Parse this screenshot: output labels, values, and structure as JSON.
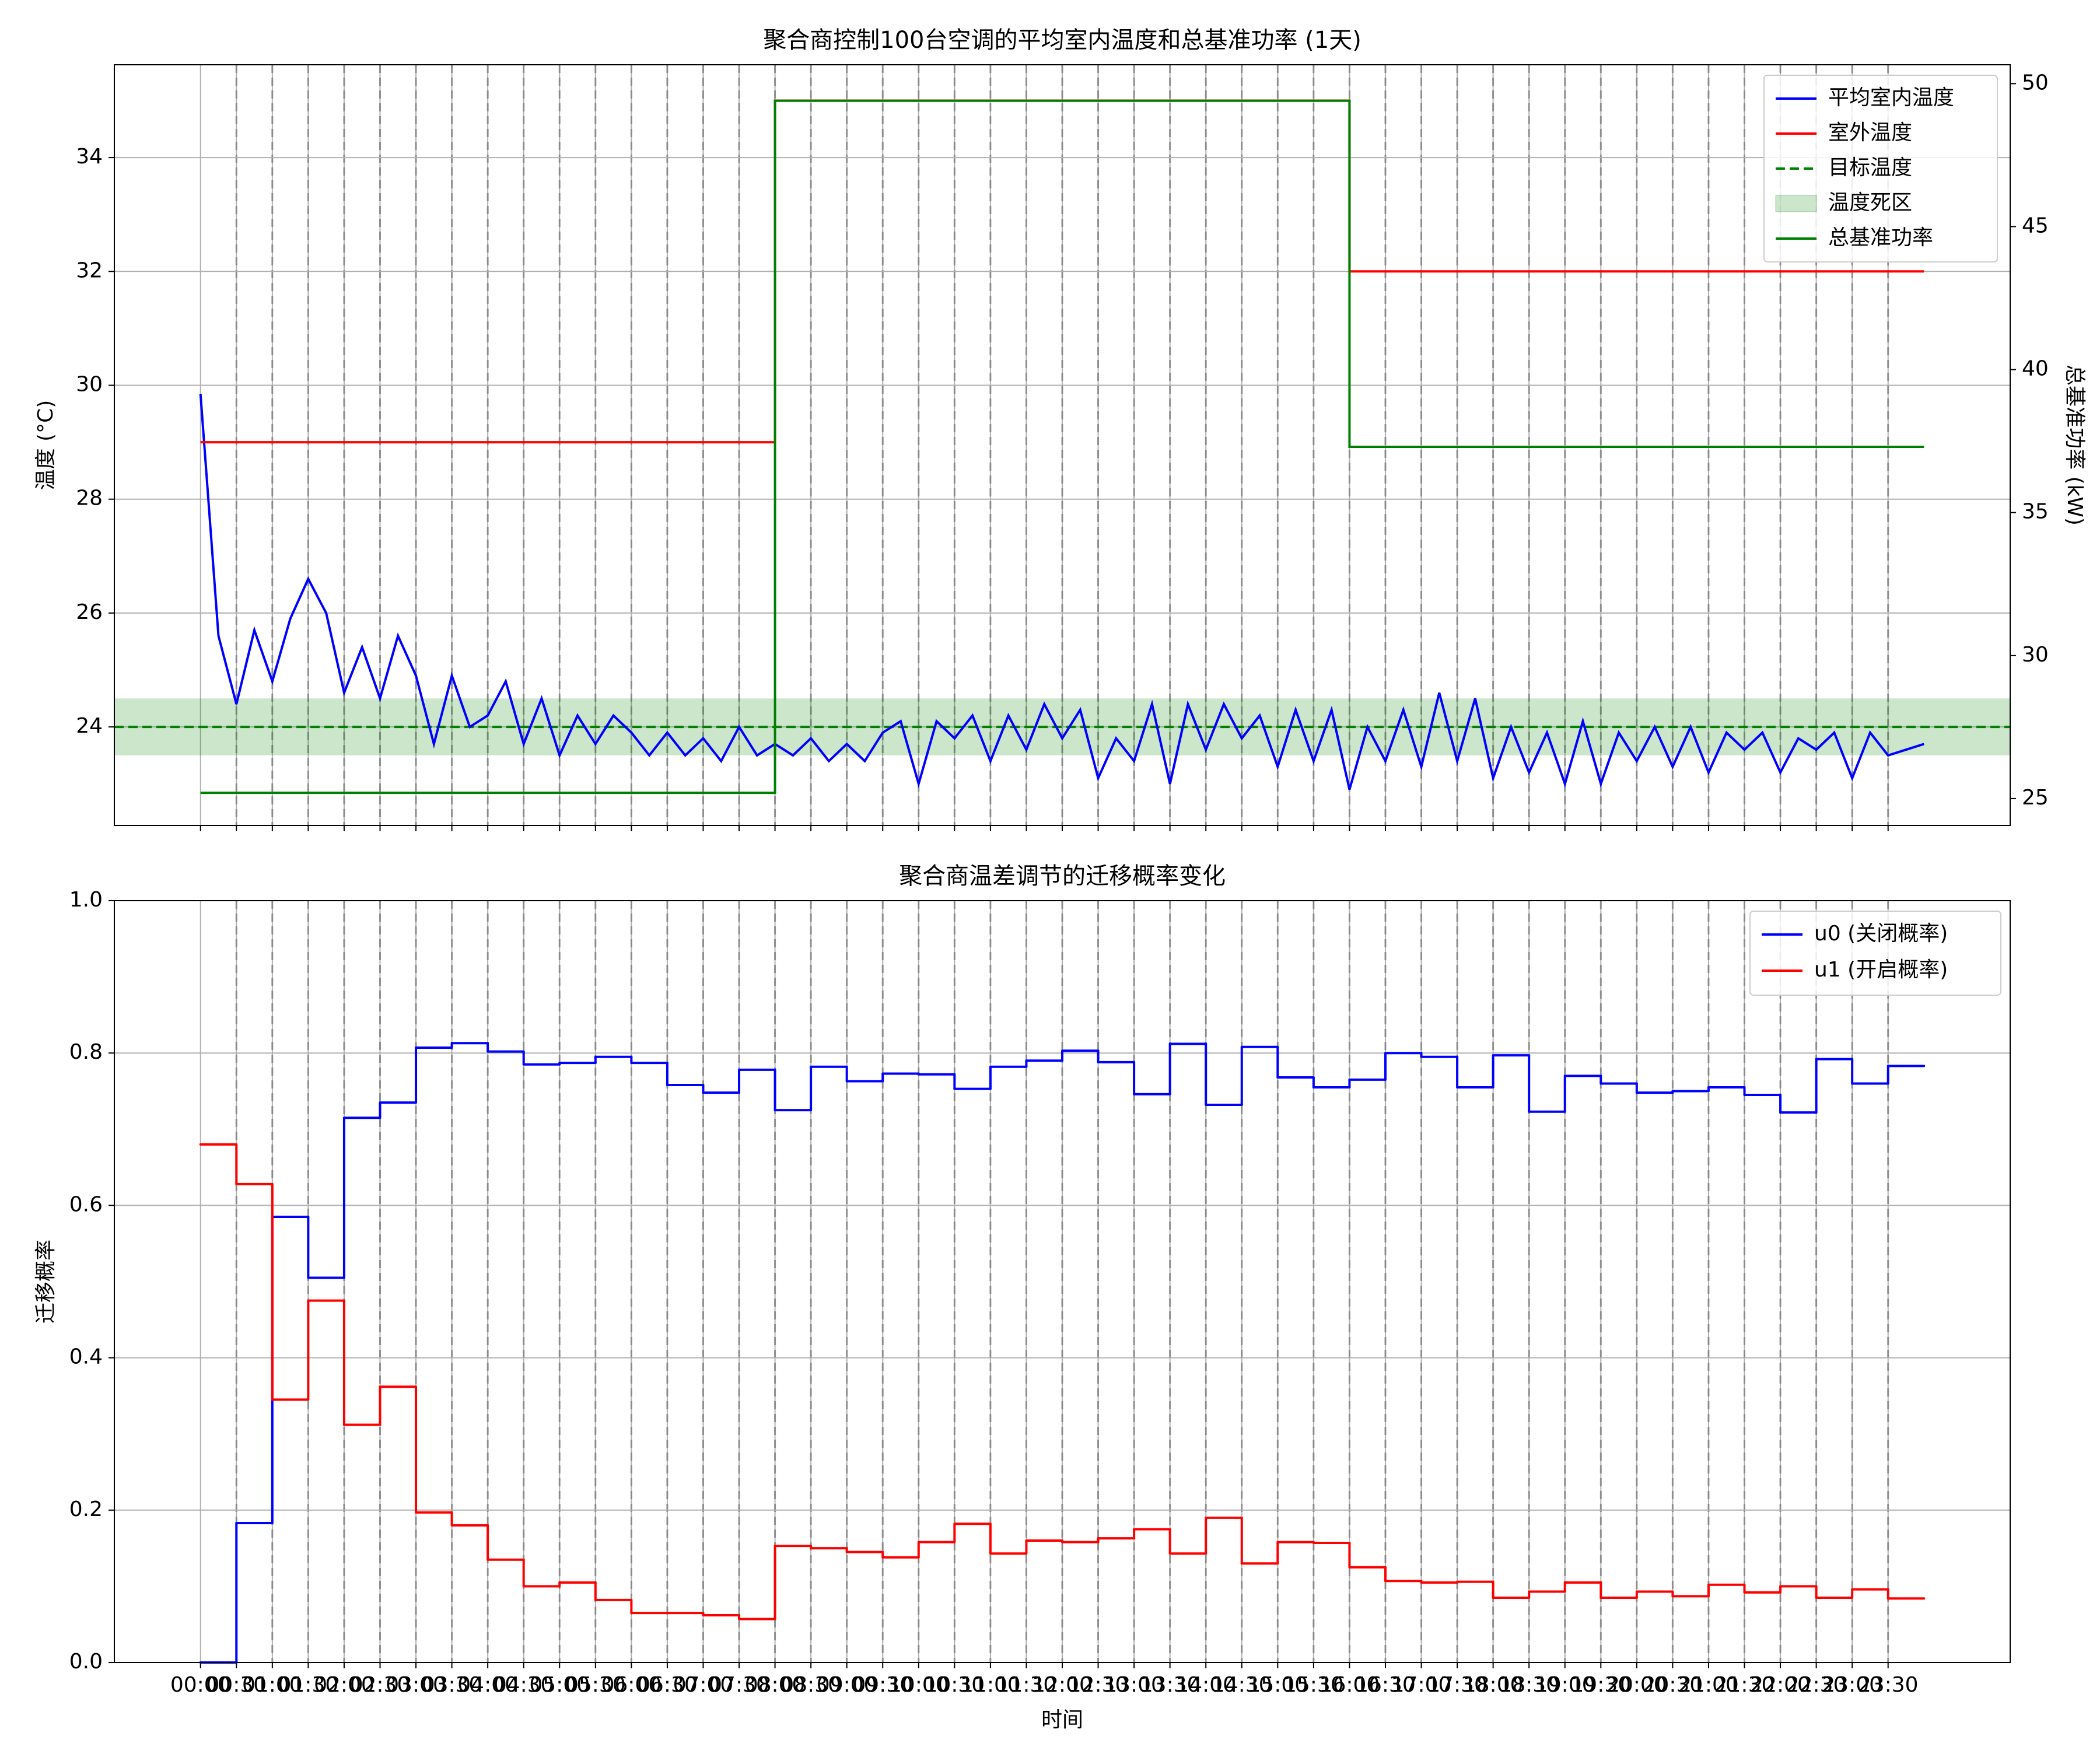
{
  "chart_data": [
    {
      "type": "line",
      "title": "聚合商控制100台空调的平均室内温度和总基准功率 (1天)",
      "ylabel": "温度 (°C)",
      "y2label": "总基准功率 (kW)",
      "xlim": [
        -1.2,
        25.2
      ],
      "ylim": [
        22.27,
        35.63
      ],
      "yticks": [
        24,
        26,
        28,
        30,
        32,
        34
      ],
      "y2lim": [
        24.06,
        50.66
      ],
      "y2ticks": [
        25,
        30,
        35,
        40,
        45,
        50
      ],
      "grid": true,
      "legend": "upper right",
      "series": [
        {
          "name": "平均室内温度",
          "color": "#0000ff",
          "x": [
            0,
            0.25,
            0.5,
            0.75,
            1,
            1.25,
            1.5,
            1.75,
            2,
            2.25,
            2.5,
            2.75,
            3,
            3.25,
            3.5,
            3.75,
            4,
            4.25,
            4.5,
            4.75,
            5,
            5.25,
            5.5,
            5.75,
            6,
            6.25,
            6.5,
            6.75,
            7,
            7.25,
            7.5,
            7.75,
            8,
            8.25,
            8.5,
            8.75,
            9,
            9.25,
            9.5,
            9.75,
            10,
            10.25,
            10.5,
            10.75,
            11,
            11.25,
            11.5,
            11.75,
            12,
            12.25,
            12.5,
            12.75,
            13,
            13.25,
            13.5,
            13.75,
            14,
            14.25,
            14.5,
            14.75,
            15,
            15.25,
            15.5,
            15.75,
            16,
            16.25,
            16.5,
            16.75,
            17,
            17.25,
            17.5,
            17.75,
            18,
            18.25,
            18.5,
            18.75,
            19,
            19.25,
            19.5,
            19.75,
            20,
            20.25,
            20.5,
            20.75,
            21,
            21.25,
            21.5,
            21.75,
            22,
            22.25,
            22.5,
            22.75,
            23,
            23.25,
            23.5,
            23.75,
            24
          ],
          "values": [
            29.85,
            25.6,
            24.4,
            25.7,
            24.8,
            25.9,
            26.6,
            26.0,
            24.6,
            25.4,
            24.5,
            25.6,
            24.9,
            23.7,
            24.9,
            24.0,
            24.2,
            24.8,
            23.7,
            24.5,
            23.5,
            24.2,
            23.7,
            24.2,
            23.9,
            23.5,
            23.9,
            23.5,
            23.8,
            23.4,
            24.0,
            23.5,
            23.7,
            23.5,
            23.8,
            23.4,
            23.7,
            23.4,
            23.9,
            24.1,
            23.0,
            24.1,
            23.8,
            24.2,
            23.4,
            24.2,
            23.6,
            24.4,
            23.8,
            24.3,
            23.1,
            23.8,
            23.4,
            24.4,
            23.0,
            24.4,
            23.6,
            24.4,
            23.8,
            24.2,
            23.3,
            24.3,
            23.4,
            24.3,
            22.9,
            24.0,
            23.4,
            24.3,
            23.3,
            24.6,
            23.4,
            24.5,
            23.1,
            24.0,
            23.2,
            23.9,
            23.0,
            24.1,
            23.0,
            23.9,
            23.4,
            24.0,
            23.3,
            24.0,
            23.2,
            23.9,
            23.6,
            23.9,
            23.2,
            23.8,
            23.6,
            23.9,
            23.1,
            23.9,
            23.5,
            23.6,
            23.7
          ]
        },
        {
          "name": "室外温度",
          "color": "#ff0000",
          "x": [
            0,
            8,
            8,
            16,
            16,
            24
          ],
          "values": [
            29,
            29,
            35,
            35,
            32,
            32
          ]
        },
        {
          "name": "总基准功率",
          "color": "#008000",
          "axis": "y2",
          "x": [
            0,
            8,
            8,
            16,
            16,
            24
          ],
          "values": [
            25.2,
            25.2,
            49.4,
            49.4,
            37.3,
            37.3
          ]
        }
      ],
      "target": {
        "name": "目标温度",
        "value": 24,
        "color": "#008000"
      },
      "band": {
        "name": "温度死区",
        "range": [
          23.5,
          24.5
        ],
        "color": "#008000"
      }
    },
    {
      "type": "step",
      "title": "聚合商温差调节的迁移概率变化",
      "xlabel": "时间",
      "ylabel": "迁移概率",
      "xlim": [
        -1.2,
        25.2
      ],
      "ylim": [
        0,
        1
      ],
      "yticks": [
        {
          "value": 0,
          "label": "0.0"
        },
        0.2,
        0.4,
        0.6,
        0.8,
        {
          "value": 1,
          "label": "1.0"
        }
      ],
      "xticks": [
        {
          "value": 0,
          "label": "00:00"
        },
        {
          "value": 0.5,
          "label": "00:30"
        },
        {
          "value": 1,
          "label": "01:00"
        },
        {
          "value": 1.5,
          "label": "01:30"
        },
        {
          "value": 2,
          "label": "02:00"
        },
        {
          "value": 2.5,
          "label": "02:30"
        },
        {
          "value": 3,
          "label": "03:00"
        },
        {
          "value": 3.5,
          "label": "03:30"
        },
        {
          "value": 4,
          "label": "04:00"
        },
        {
          "value": 4.5,
          "label": "04:30"
        },
        {
          "value": 5,
          "label": "05:00"
        },
        {
          "value": 5.5,
          "label": "05:30"
        },
        {
          "value": 6,
          "label": "06:00"
        },
        {
          "value": 6.5,
          "label": "06:30"
        },
        {
          "value": 7,
          "label": "07:00"
        },
        {
          "value": 7.5,
          "label": "07:30"
        },
        {
          "value": 8,
          "label": "08:00"
        },
        {
          "value": 8.5,
          "label": "08:30"
        },
        {
          "value": 9,
          "label": "09:00"
        },
        {
          "value": 9.5,
          "label": "09:30"
        },
        {
          "value": 10,
          "label": "10:00"
        },
        {
          "value": 10.5,
          "label": "10:30"
        },
        {
          "value": 11,
          "label": "11:00"
        },
        {
          "value": 11.5,
          "label": "11:30"
        },
        {
          "value": 12,
          "label": "12:00"
        },
        {
          "value": 12.5,
          "label": "12:30"
        },
        {
          "value": 13,
          "label": "13:00"
        },
        {
          "value": 13.5,
          "label": "13:30"
        },
        {
          "value": 14,
          "label": "14:00"
        },
        {
          "value": 14.5,
          "label": "14:30"
        },
        {
          "value": 15,
          "label": "15:00"
        },
        {
          "value": 15.5,
          "label": "15:30"
        },
        {
          "value": 16,
          "label": "16:00"
        },
        {
          "value": 16.5,
          "label": "16:30"
        },
        {
          "value": 17,
          "label": "17:00"
        },
        {
          "value": 17.5,
          "label": "17:30"
        },
        {
          "value": 18,
          "label": "18:00"
        },
        {
          "value": 18.5,
          "label": "18:30"
        },
        {
          "value": 19,
          "label": "19:00"
        },
        {
          "value": 19.5,
          "label": "19:30"
        },
        {
          "value": 20,
          "label": "20:00"
        },
        {
          "value": 20.5,
          "label": "20:30"
        },
        {
          "value": 21,
          "label": "21:00"
        },
        {
          "value": 21.5,
          "label": "21:30"
        },
        {
          "value": 22,
          "label": "22:00"
        },
        {
          "value": 22.5,
          "label": "22:30"
        },
        {
          "value": 23,
          "label": "23:00"
        },
        {
          "value": 23.5,
          "label": "23:30"
        }
      ],
      "grid": true,
      "legend": "upper right",
      "x": [
        0,
        0.5,
        1,
        1.5,
        2,
        2.5,
        3,
        3.5,
        4,
        4.5,
        5,
        5.5,
        6,
        6.5,
        7,
        7.5,
        8,
        8.5,
        9,
        9.5,
        10,
        10.5,
        11,
        11.5,
        12,
        12.5,
        13,
        13.5,
        14,
        14.5,
        15,
        15.5,
        16,
        16.5,
        17,
        17.5,
        18,
        18.5,
        19,
        19.5,
        20,
        20.5,
        21,
        21.5,
        22,
        22.5,
        23,
        23.5
      ],
      "series": [
        {
          "name": "u0 (关闭概率)",
          "color": "#0000ff",
          "values": [
            0,
            0.183,
            0.585,
            0.505,
            0.715,
            0.735,
            0.807,
            0.813,
            0.802,
            0.785,
            0.787,
            0.795,
            0.787,
            0.758,
            0.748,
            0.778,
            0.725,
            0.782,
            0.763,
            0.773,
            0.772,
            0.753,
            0.782,
            0.79,
            0.803,
            0.788,
            0.746,
            0.812,
            0.732,
            0.808,
            0.768,
            0.755,
            0.765,
            0.8,
            0.795,
            0.755,
            0.797,
            0.723,
            0.77,
            0.76,
            0.748,
            0.75,
            0.755,
            0.745,
            0.722,
            0.792,
            0.76,
            0.783
          ]
        },
        {
          "name": "u1 (开启概率)",
          "color": "#ff0000",
          "values": [
            0.68,
            0.628,
            0.345,
            0.475,
            0.312,
            0.362,
            0.197,
            0.18,
            0.135,
            0.1,
            0.105,
            0.082,
            0.065,
            0.065,
            0.062,
            0.057,
            0.153,
            0.15,
            0.145,
            0.138,
            0.158,
            0.182,
            0.143,
            0.16,
            0.158,
            0.163,
            0.175,
            0.143,
            0.19,
            0.13,
            0.158,
            0.157,
            0.125,
            0.107,
            0.105,
            0.106,
            0.085,
            0.093,
            0.105,
            0.085,
            0.093,
            0.087,
            0.102,
            0.092,
            0.1,
            0.085,
            0.096,
            0.084
          ]
        }
      ]
    }
  ]
}
